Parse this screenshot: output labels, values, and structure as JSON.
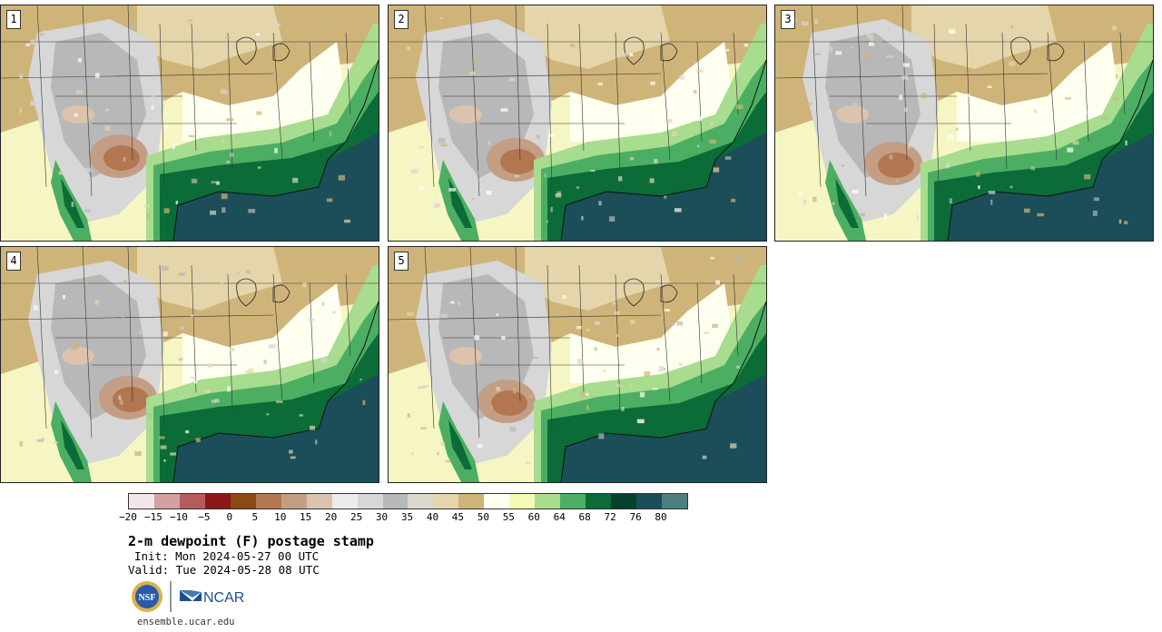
{
  "panels": [
    {
      "label": "1",
      "variant": 0
    },
    {
      "label": "2",
      "variant": 1
    },
    {
      "label": "3",
      "variant": 2
    },
    {
      "label": "4",
      "variant": 3
    },
    {
      "label": "5",
      "variant": 4
    }
  ],
  "colorbar": {
    "colors": [
      "#f3e6e6",
      "#d5a0a0",
      "#b45c5c",
      "#8e1717",
      "#8a4a12",
      "#b27650",
      "#c49e84",
      "#dcc3ad",
      "#ececec",
      "#d7d7d7",
      "#b8b8b8",
      "#ddd8cc",
      "#e4d6aa",
      "#cfb47a",
      "#fffff0",
      "#f6f9b4",
      "#a8dc8e",
      "#4cae62",
      "#0b6c38",
      "#04412a",
      "#1b4e58",
      "#4e7f7f"
    ],
    "ticks": [
      "−20",
      "−15",
      "−10",
      "−5",
      "0",
      "5",
      "10",
      "15",
      "20",
      "25",
      "30",
      "35",
      "40",
      "45",
      "50",
      "55",
      "60",
      "64",
      "68",
      "72",
      "76",
      "80"
    ]
  },
  "title": "2-m dewpoint (F) postage stamp",
  "init": "Init: Mon 2024-05-27 00 UTC",
  "valid": "Valid: Tue 2024-05-28 08 UTC",
  "logos": {
    "nsf": "NSF",
    "ncar": "NCAR"
  },
  "url": "ensemble.ucar.edu"
}
